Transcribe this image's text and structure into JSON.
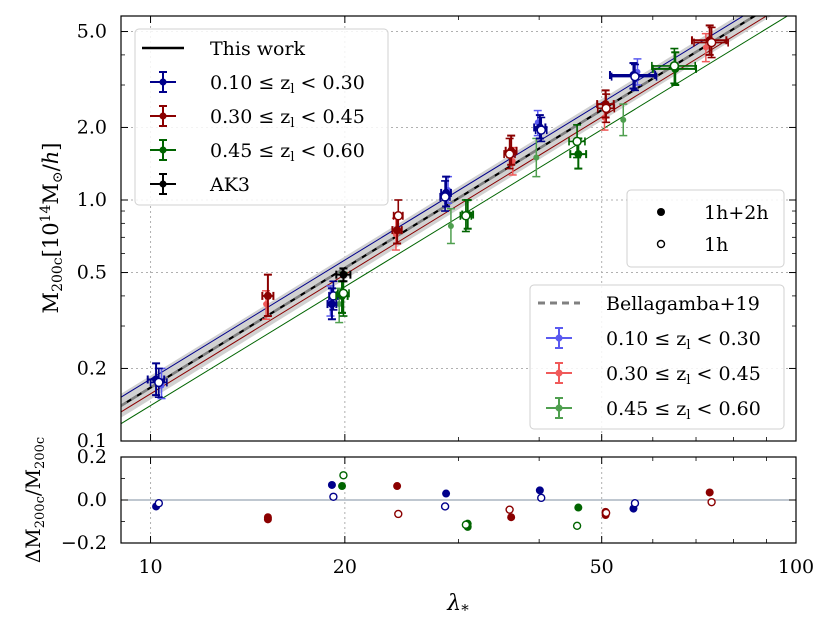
{
  "chart_data": {
    "type": "scatter",
    "colors": {
      "z1": "#00008b",
      "z2": "#8b0000",
      "z3": "#006400",
      "ak3": "#000000",
      "z1_light": "#5a5af0",
      "z2_light": "#f05a5a",
      "z3_light": "#4f9f4f",
      "band": "#cccccc",
      "bellagamba": "#808080",
      "zero_line": "#7f8fa0"
    },
    "xaxis": {
      "label": "λ*",
      "scale": "log",
      "lim": [
        9,
        100
      ],
      "ticks": [
        10,
        20,
        50,
        100
      ],
      "tick_labels": [
        "10",
        "20",
        "50",
        "100"
      ]
    },
    "top_panel": {
      "ylabel": "M200c[10^14 M⊙/h]",
      "scale": "log",
      "ylim": [
        0.1,
        5.8
      ],
      "ticks": [
        0.1,
        0.2,
        0.5,
        1.0,
        2.0,
        5.0
      ],
      "tick_labels": [
        "0.1",
        "0.2",
        "0.5",
        "1.0",
        "2.0",
        "5.0"
      ],
      "grid": true,
      "fit_lines": [
        {
          "name": "This work",
          "color": "#000000",
          "style": "solid",
          "x": [
            9,
            100
          ],
          "y": [
            0.14,
            7.4
          ]
        },
        {
          "name": "0.10 ≤ zl < 0.30",
          "color": "#00008b",
          "style": "solid",
          "x": [
            9,
            100
          ],
          "y": [
            0.152,
            7.9
          ]
        },
        {
          "name": "0.30 ≤ zl < 0.45",
          "color": "#8b0000",
          "style": "solid",
          "x": [
            9,
            100
          ],
          "y": [
            0.132,
            6.9
          ]
        },
        {
          "name": "0.45 ≤ zl < 0.60",
          "color": "#006400",
          "style": "solid",
          "x": [
            9,
            100
          ],
          "y": [
            0.118,
            6.1
          ]
        },
        {
          "name": "Bellagamba+19",
          "color": "#808080",
          "style": "dashed",
          "x": [
            9,
            100
          ],
          "y": [
            0.14,
            7.4
          ]
        }
      ],
      "band": {
        "x": [
          9,
          100
        ],
        "lower": [
          0.125,
          6.7
        ],
        "upper": [
          0.157,
          8.2
        ]
      },
      "series": [
        {
          "name": "0.10 ≤ zl < 0.30",
          "key": "z1",
          "color": "#00008b",
          "filled": [
            {
              "x": 10.2,
              "y": 0.18,
              "xerr": 0.3,
              "ylo": 0.155,
              "yhi": 0.21
            },
            {
              "x": 19.1,
              "y": 0.37,
              "xerr": 0.3,
              "ylo": 0.32,
              "yhi": 0.43
            },
            {
              "x": 28.7,
              "y": 1.07,
              "xerr": 0.5,
              "ylo": 0.94,
              "yhi": 1.25
            },
            {
              "x": 40.1,
              "y": 2.0,
              "xerr": 0.8,
              "ylo": 1.8,
              "yhi": 2.25
            },
            {
              "x": 56.0,
              "y": 3.3,
              "xerr": 4.5,
              "ylo": 2.9,
              "yhi": 3.7
            }
          ],
          "open": [
            {
              "x": 10.3,
              "y": 0.175,
              "xerr": 0.3,
              "ylo": 0.152,
              "yhi": 0.2
            },
            {
              "x": 19.2,
              "y": 0.4,
              "xerr": 0.3,
              "ylo": 0.35,
              "yhi": 0.46
            },
            {
              "x": 28.6,
              "y": 1.03,
              "xerr": 0.5,
              "ylo": 0.9,
              "yhi": 1.2
            },
            {
              "x": 40.3,
              "y": 1.95,
              "xerr": 0.8,
              "ylo": 1.75,
              "yhi": 2.2
            },
            {
              "x": 56.3,
              "y": 3.25,
              "xerr": 4.5,
              "ylo": 2.85,
              "yhi": 3.65
            }
          ]
        },
        {
          "name": "0.30 ≤ zl < 0.45",
          "key": "z2",
          "color": "#8b0000",
          "filled": [
            {
              "x": 15.2,
              "y": 0.4,
              "xerr": 0.3,
              "ylo": 0.33,
              "yhi": 0.49
            },
            {
              "x": 24.1,
              "y": 0.75,
              "xerr": 0.4,
              "ylo": 0.66,
              "yhi": 0.87
            },
            {
              "x": 36.2,
              "y": 1.6,
              "xerr": 0.7,
              "ylo": 1.4,
              "yhi": 1.85
            },
            {
              "x": 50.7,
              "y": 2.5,
              "xerr": 1.5,
              "ylo": 2.2,
              "yhi": 2.85
            },
            {
              "x": 73.5,
              "y": 4.6,
              "xerr": 4.5,
              "ylo": 4.0,
              "yhi": 5.3
            }
          ],
          "open": [
            {
              "x": 24.2,
              "y": 0.86,
              "xerr": 0.4,
              "ylo": 0.73,
              "yhi": 1.0
            },
            {
              "x": 36.0,
              "y": 1.55,
              "xerr": 0.7,
              "ylo": 1.35,
              "yhi": 1.8
            },
            {
              "x": 50.8,
              "y": 2.4,
              "xerr": 1.5,
              "ylo": 2.1,
              "yhi": 2.75
            },
            {
              "x": 74.0,
              "y": 4.5,
              "xerr": 4.5,
              "ylo": 3.9,
              "yhi": 5.2
            }
          ]
        },
        {
          "name": "0.45 ≤ zl < 0.60",
          "key": "z3",
          "color": "#006400",
          "filled": [
            {
              "x": 19.8,
              "y": 0.4,
              "xerr": 0.4,
              "ylo": 0.34,
              "yhi": 0.46
            },
            {
              "x": 31.0,
              "y": 0.87,
              "xerr": 0.6,
              "ylo": 0.76,
              "yhi": 1.0
            },
            {
              "x": 46.0,
              "y": 1.55,
              "xerr": 1.3,
              "ylo": 1.35,
              "yhi": 1.8
            },
            {
              "x": 65.0,
              "y": 3.5,
              "xerr": 5.0,
              "ylo": 3.0,
              "yhi": 4.1
            }
          ],
          "open": [
            {
              "x": 19.9,
              "y": 0.41,
              "xerr": 0.4,
              "ylo": 0.33,
              "yhi": 0.5
            },
            {
              "x": 30.8,
              "y": 0.86,
              "xerr": 0.6,
              "ylo": 0.74,
              "yhi": 1.0
            },
            {
              "x": 45.8,
              "y": 1.75,
              "xerr": 1.3,
              "ylo": 1.5,
              "yhi": 2.05
            },
            {
              "x": 64.8,
              "y": 3.6,
              "xerr": 5.0,
              "ylo": 3.05,
              "yhi": 4.25
            }
          ]
        },
        {
          "name": "AK3",
          "key": "ak3",
          "color": "#000000",
          "filled": [
            {
              "x": 19.9,
              "y": 0.49,
              "xerr": 0.5,
              "ylo": 0.46,
              "yhi": 0.52
            }
          ],
          "open": []
        }
      ],
      "bellagamba_points": [
        {
          "key": "z1",
          "color": "#5a5af0",
          "x": 10.4,
          "y": 0.17,
          "ylo": 0.15,
          "yhi": 0.2
        },
        {
          "key": "z1",
          "color": "#5a5af0",
          "x": 19.0,
          "y": 0.38,
          "ylo": 0.33,
          "yhi": 0.44
        },
        {
          "key": "z1",
          "color": "#5a5af0",
          "x": 28.9,
          "y": 1.1,
          "ylo": 0.97,
          "yhi": 1.25
        },
        {
          "key": "z1",
          "color": "#5a5af0",
          "x": 39.8,
          "y": 2.1,
          "ylo": 1.85,
          "yhi": 2.35
        },
        {
          "key": "z1",
          "color": "#5a5af0",
          "x": 56.8,
          "y": 3.4,
          "ylo": 3.0,
          "yhi": 3.85
        },
        {
          "key": "z2",
          "color": "#f05a5a",
          "x": 15.1,
          "y": 0.37,
          "ylo": 0.32,
          "yhi": 0.42
        },
        {
          "key": "z2",
          "color": "#f05a5a",
          "x": 24.0,
          "y": 0.72,
          "ylo": 0.62,
          "yhi": 0.84
        },
        {
          "key": "z2",
          "color": "#f05a5a",
          "x": 36.4,
          "y": 1.45,
          "ylo": 1.27,
          "yhi": 1.65
        },
        {
          "key": "z2",
          "color": "#f05a5a",
          "x": 50.5,
          "y": 2.2,
          "ylo": 1.95,
          "yhi": 2.5
        },
        {
          "key": "z2",
          "color": "#f05a5a",
          "x": 72.5,
          "y": 4.3,
          "ylo": 3.75,
          "yhi": 4.9
        },
        {
          "key": "z3",
          "color": "#4f9f4f",
          "x": 19.6,
          "y": 0.37,
          "ylo": 0.31,
          "yhi": 0.43
        },
        {
          "key": "z3",
          "color": "#4f9f4f",
          "x": 29.2,
          "y": 0.78,
          "ylo": 0.66,
          "yhi": 0.92
        },
        {
          "key": "z3",
          "color": "#4f9f4f",
          "x": 39.6,
          "y": 1.5,
          "ylo": 1.25,
          "yhi": 1.8
        },
        {
          "key": "z3",
          "color": "#4f9f4f",
          "x": 54.0,
          "y": 2.15,
          "ylo": 1.85,
          "yhi": 2.5
        }
      ]
    },
    "bottom_panel": {
      "ylabel": "ΔM200c/M200c",
      "ylim": [
        -0.2,
        0.2
      ],
      "ticks": [
        -0.2,
        0.0,
        0.2
      ],
      "tick_labels": [
        "−0.2",
        "0.0",
        "0.2"
      ],
      "zero_line": 0.0,
      "filled": [
        {
          "key": "z1",
          "x": 10.2,
          "y": -0.03
        },
        {
          "key": "z1",
          "x": 19.1,
          "y": 0.07
        },
        {
          "key": "z1",
          "x": 28.7,
          "y": 0.03
        },
        {
          "key": "z1",
          "x": 40.1,
          "y": 0.045
        },
        {
          "key": "z1",
          "x": 56.0,
          "y": -0.04
        },
        {
          "key": "z2",
          "x": 15.2,
          "y": -0.08
        },
        {
          "key": "z2",
          "x": 15.2,
          "y": -0.09
        },
        {
          "key": "z2",
          "x": 24.1,
          "y": 0.065
        },
        {
          "key": "z2",
          "x": 36.2,
          "y": -0.08
        },
        {
          "key": "z2",
          "x": 50.7,
          "y": -0.055
        },
        {
          "key": "z2",
          "x": 50.7,
          "y": -0.07
        },
        {
          "key": "z2",
          "x": 73.5,
          "y": 0.035
        },
        {
          "key": "z3",
          "x": 19.8,
          "y": 0.065
        },
        {
          "key": "z3",
          "x": 31.0,
          "y": -0.11
        },
        {
          "key": "z3",
          "x": 31.0,
          "y": -0.125
        },
        {
          "key": "z3",
          "x": 46.0,
          "y": -0.035
        }
      ],
      "open": [
        {
          "key": "z1",
          "x": 10.3,
          "y": -0.015
        },
        {
          "key": "z1",
          "x": 19.2,
          "y": 0.015
        },
        {
          "key": "z1",
          "x": 28.6,
          "y": -0.03
        },
        {
          "key": "z1",
          "x": 40.3,
          "y": 0.01
        },
        {
          "key": "z1",
          "x": 56.3,
          "y": -0.015
        },
        {
          "key": "z2",
          "x": 24.2,
          "y": -0.065
        },
        {
          "key": "z2",
          "x": 36.0,
          "y": -0.045
        },
        {
          "key": "z2",
          "x": 50.8,
          "y": -0.06
        },
        {
          "key": "z2",
          "x": 74.0,
          "y": -0.01
        },
        {
          "key": "z3",
          "x": 19.9,
          "y": 0.115
        },
        {
          "key": "z3",
          "x": 30.8,
          "y": -0.115
        },
        {
          "key": "z3",
          "x": 45.8,
          "y": -0.12
        }
      ]
    },
    "legends": {
      "main": {
        "placement": "upper-left",
        "entries": [
          {
            "label": "This work",
            "marker": "line",
            "color": "#000000"
          },
          {
            "label": "0.10 ≤ zl < 0.30",
            "marker": "errorbar",
            "color": "#00008b"
          },
          {
            "label": "0.30 ≤ zl < 0.45",
            "marker": "errorbar",
            "color": "#8b0000"
          },
          {
            "label": "0.45 ≤ zl < 0.60",
            "marker": "errorbar",
            "color": "#006400"
          },
          {
            "label": "AK3",
            "marker": "errorbar",
            "color": "#000000"
          }
        ]
      },
      "profile": {
        "placement": "right",
        "entries": [
          {
            "label": "1h+2h",
            "marker": "filled-dot"
          },
          {
            "label": "1h",
            "marker": "open-dot"
          }
        ]
      },
      "comparison": {
        "placement": "lower-right",
        "entries": [
          {
            "label": "Bellagamba+19",
            "marker": "dashed",
            "color": "#808080"
          },
          {
            "label": "0.10 ≤ zl < 0.30",
            "marker": "errorbar",
            "color": "#5a5af0"
          },
          {
            "label": "0.30 ≤ zl < 0.45",
            "marker": "errorbar",
            "color": "#f05a5a"
          },
          {
            "label": "0.45 ≤ zl < 0.60",
            "marker": "errorbar",
            "color": "#4f9f4f"
          }
        ]
      }
    }
  }
}
